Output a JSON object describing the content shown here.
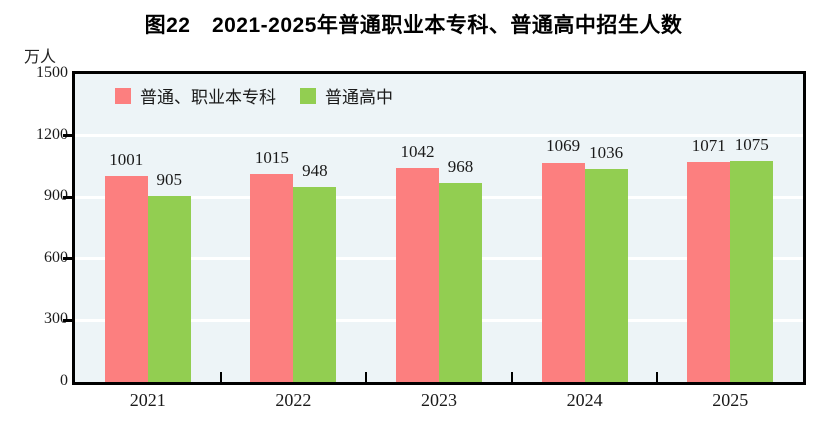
{
  "chart_data": {
    "type": "bar",
    "title": "图22　2021-2025年普通职业本专科、普通高中招生人数",
    "unit_label": "万人",
    "categories": [
      "2021",
      "2022",
      "2023",
      "2024",
      "2025"
    ],
    "series": [
      {
        "name": "普通、职业本专科",
        "color": "#FC7F7F",
        "values": [
          1001,
          1015,
          1042,
          1069,
          1071
        ]
      },
      {
        "name": "普通高中",
        "color": "#92CE51",
        "values": [
          905,
          948,
          968,
          1036,
          1075
        ]
      }
    ],
    "ylim": [
      0,
      1500
    ],
    "yticks": [
      0,
      300,
      600,
      900,
      1200,
      1500
    ],
    "grid": true,
    "legend_position": "top-left-inside",
    "colors": {
      "plot_background": "#EDF4F7",
      "gridline": "#FFFFFF",
      "frame": "#000000",
      "text": "#1a1a1a"
    }
  }
}
